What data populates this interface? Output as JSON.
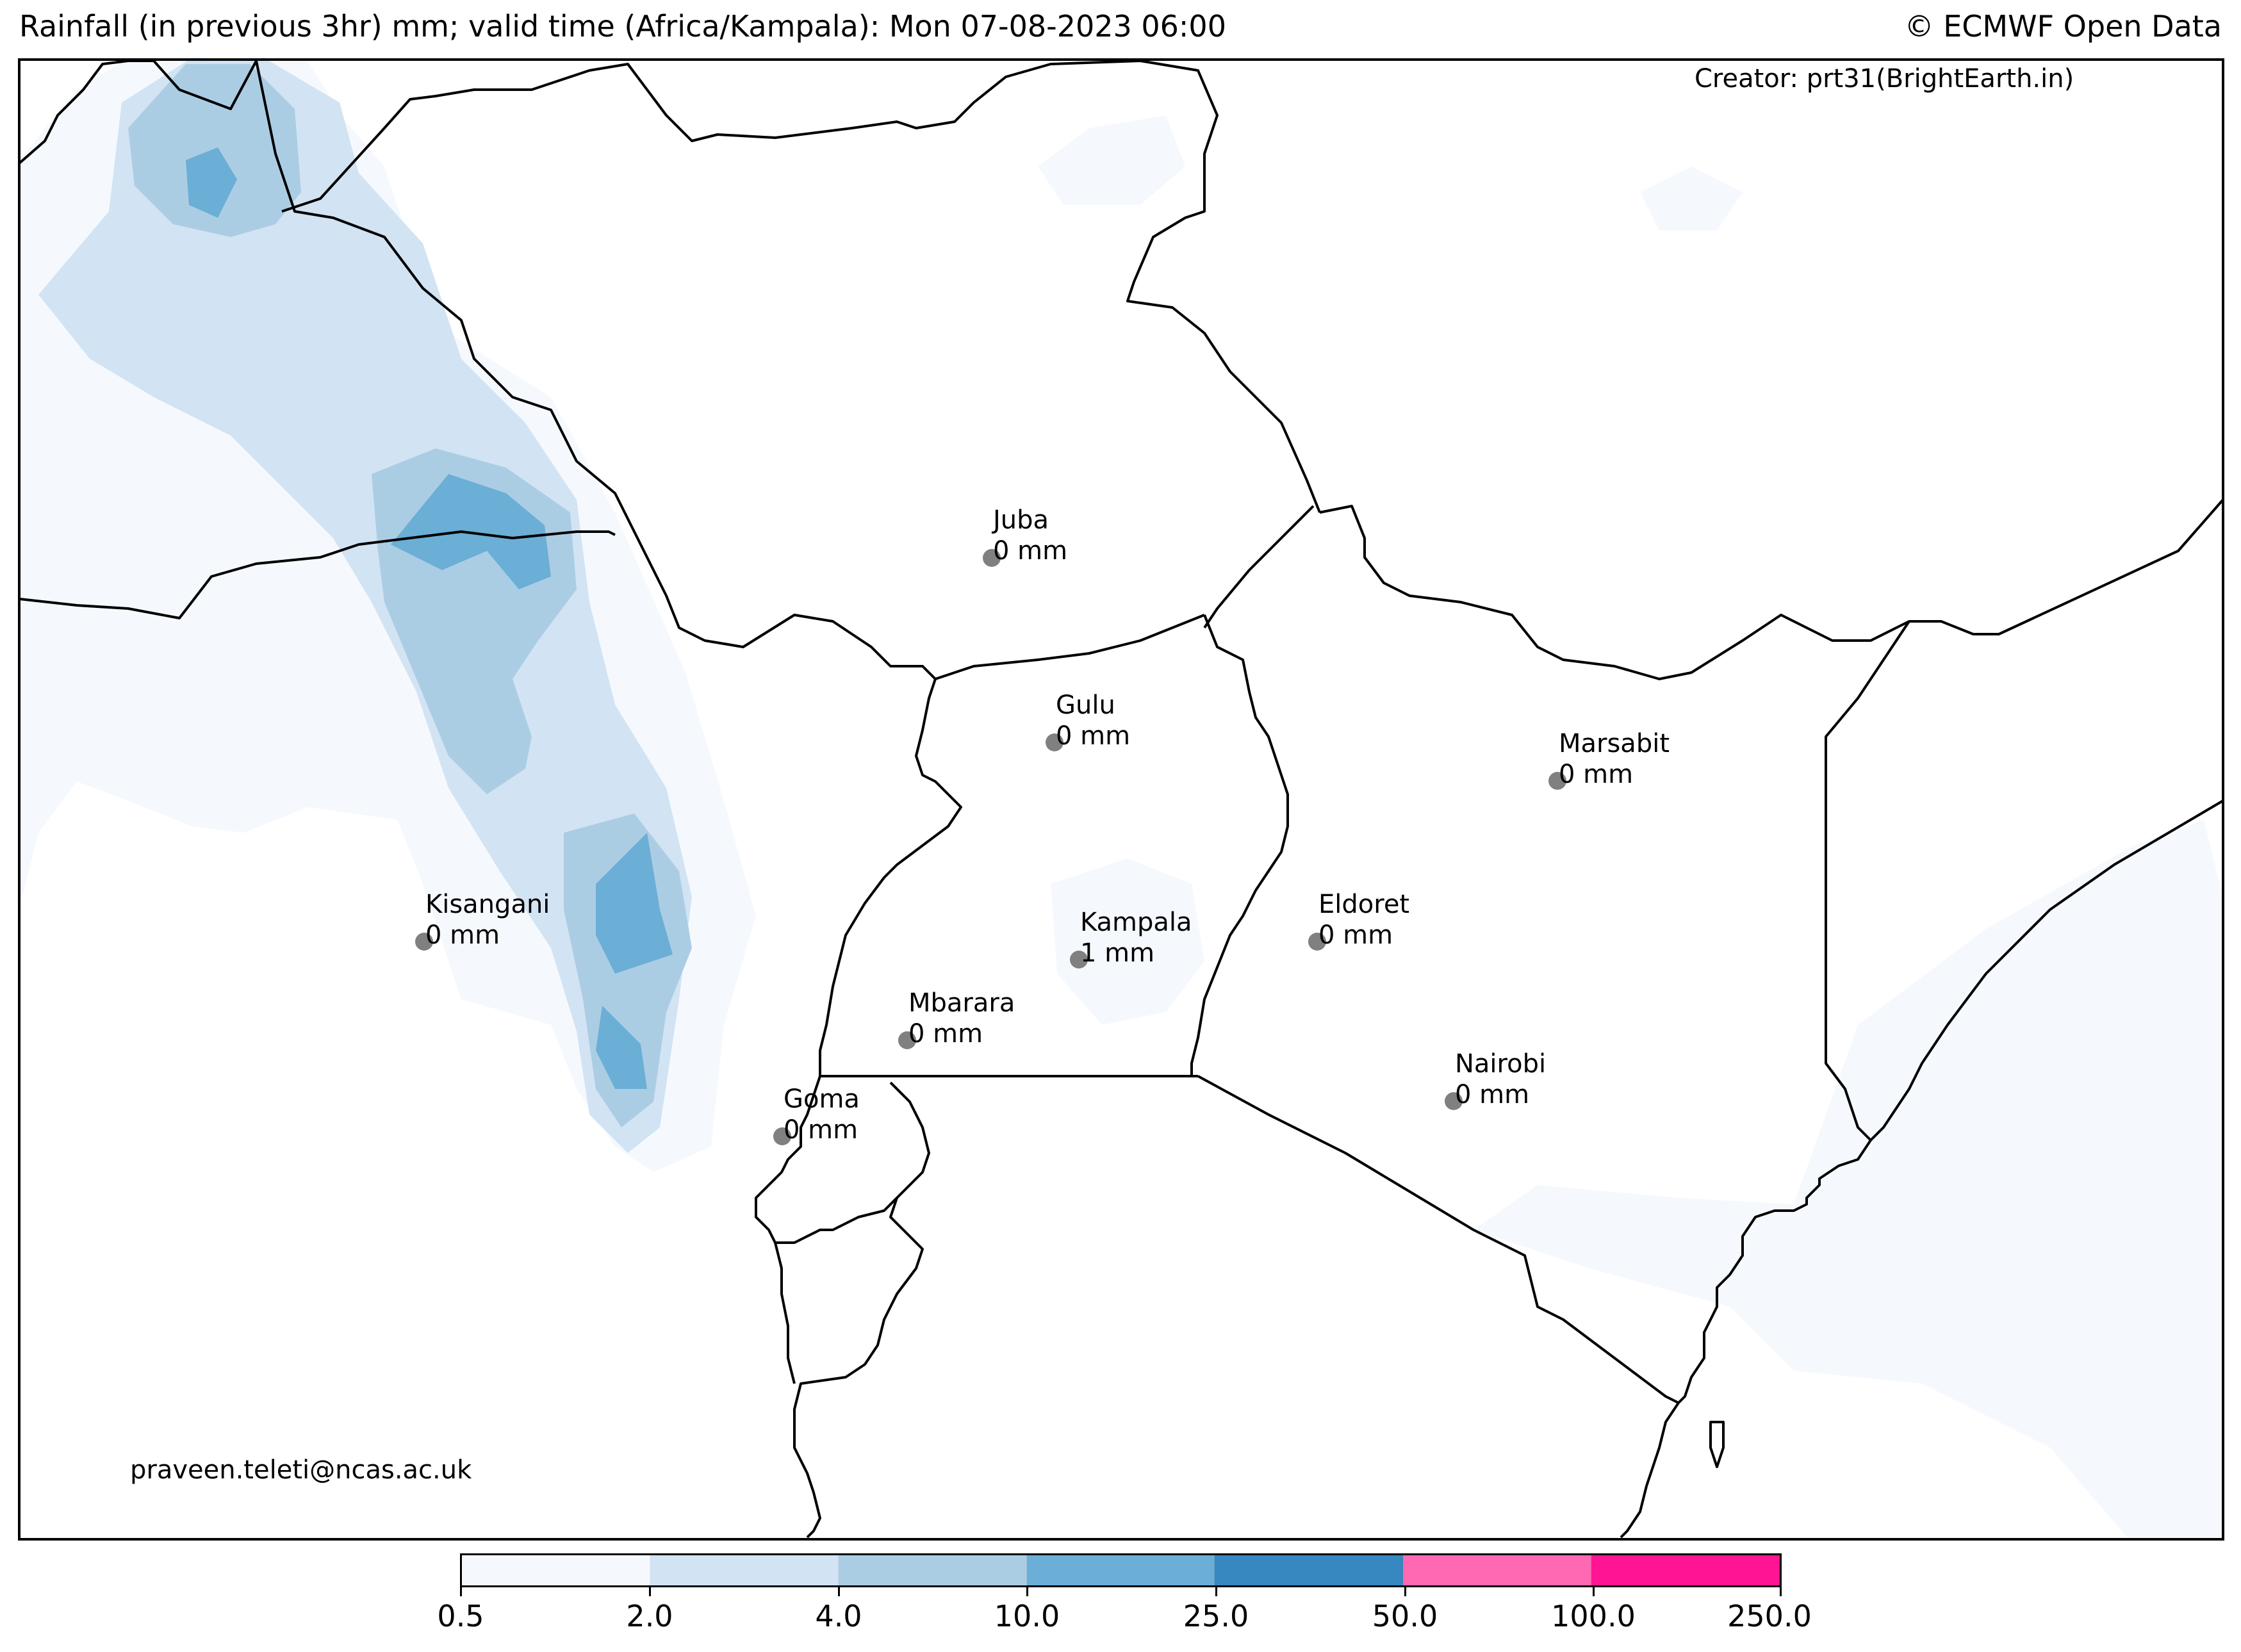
{
  "header": {
    "title": "Rainfall (in previous 3hr) mm; valid time (Africa/Kampala): Mon 07-08-2023 06:00",
    "copyright": "© ECMWF Open Data"
  },
  "credits": {
    "creator": "Creator: prt31(BrightEarth.in)",
    "email": "praveen.teleti@ncas.ac.uk"
  },
  "cities": [
    {
      "name": "Juba",
      "value": "0 mm"
    },
    {
      "name": "Gulu",
      "value": "0 mm"
    },
    {
      "name": "Marsabit",
      "value": "0 mm"
    },
    {
      "name": "Kisangani",
      "value": "0 mm"
    },
    {
      "name": "Eldoret",
      "value": "0 mm"
    },
    {
      "name": "Kampala",
      "value": "1 mm"
    },
    {
      "name": "Mbarara",
      "value": "0 mm"
    },
    {
      "name": "Nairobi",
      "value": "0 mm"
    },
    {
      "name": "Goma",
      "value": "0 mm"
    }
  ],
  "colorbar": {
    "ticks": [
      "0.5",
      "2.0",
      "4.0",
      "10.0",
      "25.0",
      "50.0",
      "100.0",
      "250.0"
    ],
    "colors": [
      "#f5f9fd",
      "#d2e3f3",
      "#abcde4",
      "#6baed6",
      "#3787c0",
      "#ff69b4",
      "#ff1493"
    ]
  }
}
